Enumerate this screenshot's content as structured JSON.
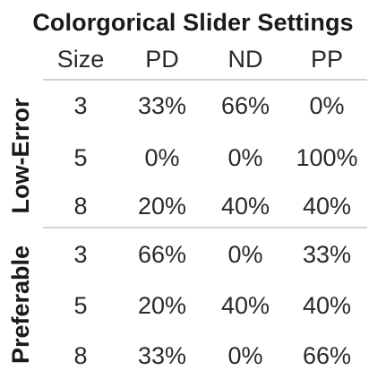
{
  "title": "Colorgorical Slider Settings",
  "columns": [
    "Size",
    "PD",
    "ND",
    "PP"
  ],
  "groups": [
    {
      "label": "Low-Error",
      "rows": [
        {
          "size": "3",
          "pd": "33%",
          "nd": "66%",
          "pp": "0%"
        },
        {
          "size": "5",
          "pd": "0%",
          "nd": "0%",
          "pp": "100%"
        },
        {
          "size": "8",
          "pd": "20%",
          "nd": "40%",
          "pp": "40%"
        }
      ]
    },
    {
      "label": "Preferable",
      "rows": [
        {
          "size": "3",
          "pd": "66%",
          "nd": "0%",
          "pp": "33%"
        },
        {
          "size": "5",
          "pd": "20%",
          "nd": "40%",
          "pp": "40%"
        },
        {
          "size": "8",
          "pd": "33%",
          "nd": "0%",
          "pp": "66%"
        }
      ]
    }
  ]
}
